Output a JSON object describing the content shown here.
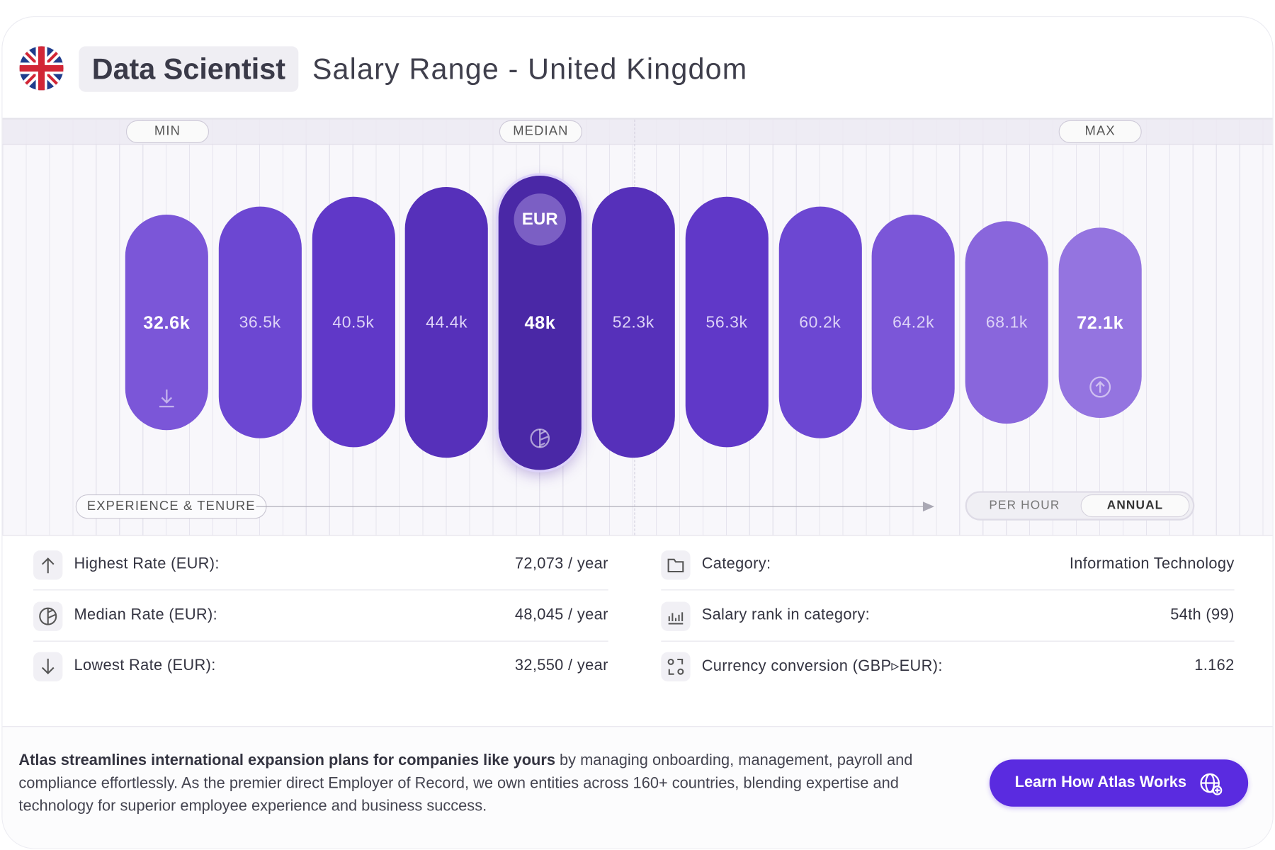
{
  "header": {
    "title": "Data Scientist",
    "subtitle": "Salary Range - United Kingdom"
  },
  "chart": {
    "markers": [
      "MIN",
      "MEDIAN",
      "MAX"
    ],
    "currency": "EUR",
    "bars": [
      "32.6k",
      "36.5k",
      "40.5k",
      "44.4k",
      "48k",
      "52.3k",
      "56.3k",
      "60.2k",
      "64.2k",
      "68.1k",
      "72.1k"
    ],
    "axis_label": "EXPERIENCE & TENURE",
    "toggle": [
      "PER HOUR",
      "ANNUAL"
    ]
  },
  "stats": {
    "left": [
      {
        "label": "Highest Rate (EUR):",
        "value": "72,073 / year"
      },
      {
        "label": "Median Rate (EUR):",
        "value": "48,045 / year"
      },
      {
        "label": "Lowest Rate (EUR):",
        "value": "32,550 / year"
      }
    ],
    "right": [
      {
        "label": "Category:",
        "value": "Information Technology"
      },
      {
        "label": "Salary rank in category:",
        "value": "54th (99)"
      },
      {
        "label": "Currency conversion (GBP▹EUR):",
        "value": "1.162"
      }
    ]
  },
  "footer": {
    "bold": "Atlas streamlines international expansion plans for companies like yours",
    "text": " by managing onboarding, management, payroll and compliance effortlessly. As the premier direct Employer of Record, we own entities across 160+ countries, blending expertise and technology for superior employee experience and business success.",
    "button": "Learn How Atlas Works"
  }
}
